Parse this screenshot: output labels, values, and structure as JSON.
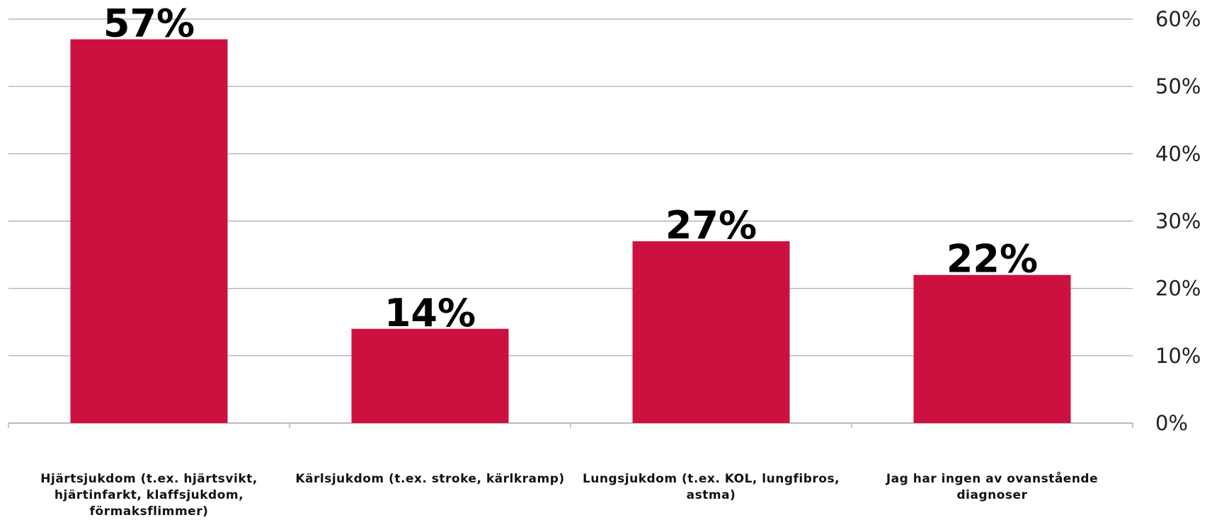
{
  "chart_data": {
    "type": "bar",
    "categories": [
      "Hjärtsjukdom (t.ex. hjärtsvikt, hjärtinfarkt, klaffsjukdom, förmaksflimmer)",
      "Kärlsjukdom (t.ex. stroke, kärlkramp)",
      "Lungsjukdom (t.ex. KOL, lungfibros, astma)",
      "Jag har ingen av ovanstående diagnoser"
    ],
    "values": [
      57,
      14,
      27,
      22
    ],
    "data_labels": [
      "57%",
      "14%",
      "27%",
      "22%"
    ],
    "y_ticks": [
      "0%",
      "10%",
      "20%",
      "30%",
      "40%",
      "50%",
      "60%"
    ],
    "ylim": [
      0,
      60
    ],
    "y_axis_side": "right",
    "grid": true,
    "bar_color": "#CC1140",
    "grid_color": "#A6A6A6"
  }
}
